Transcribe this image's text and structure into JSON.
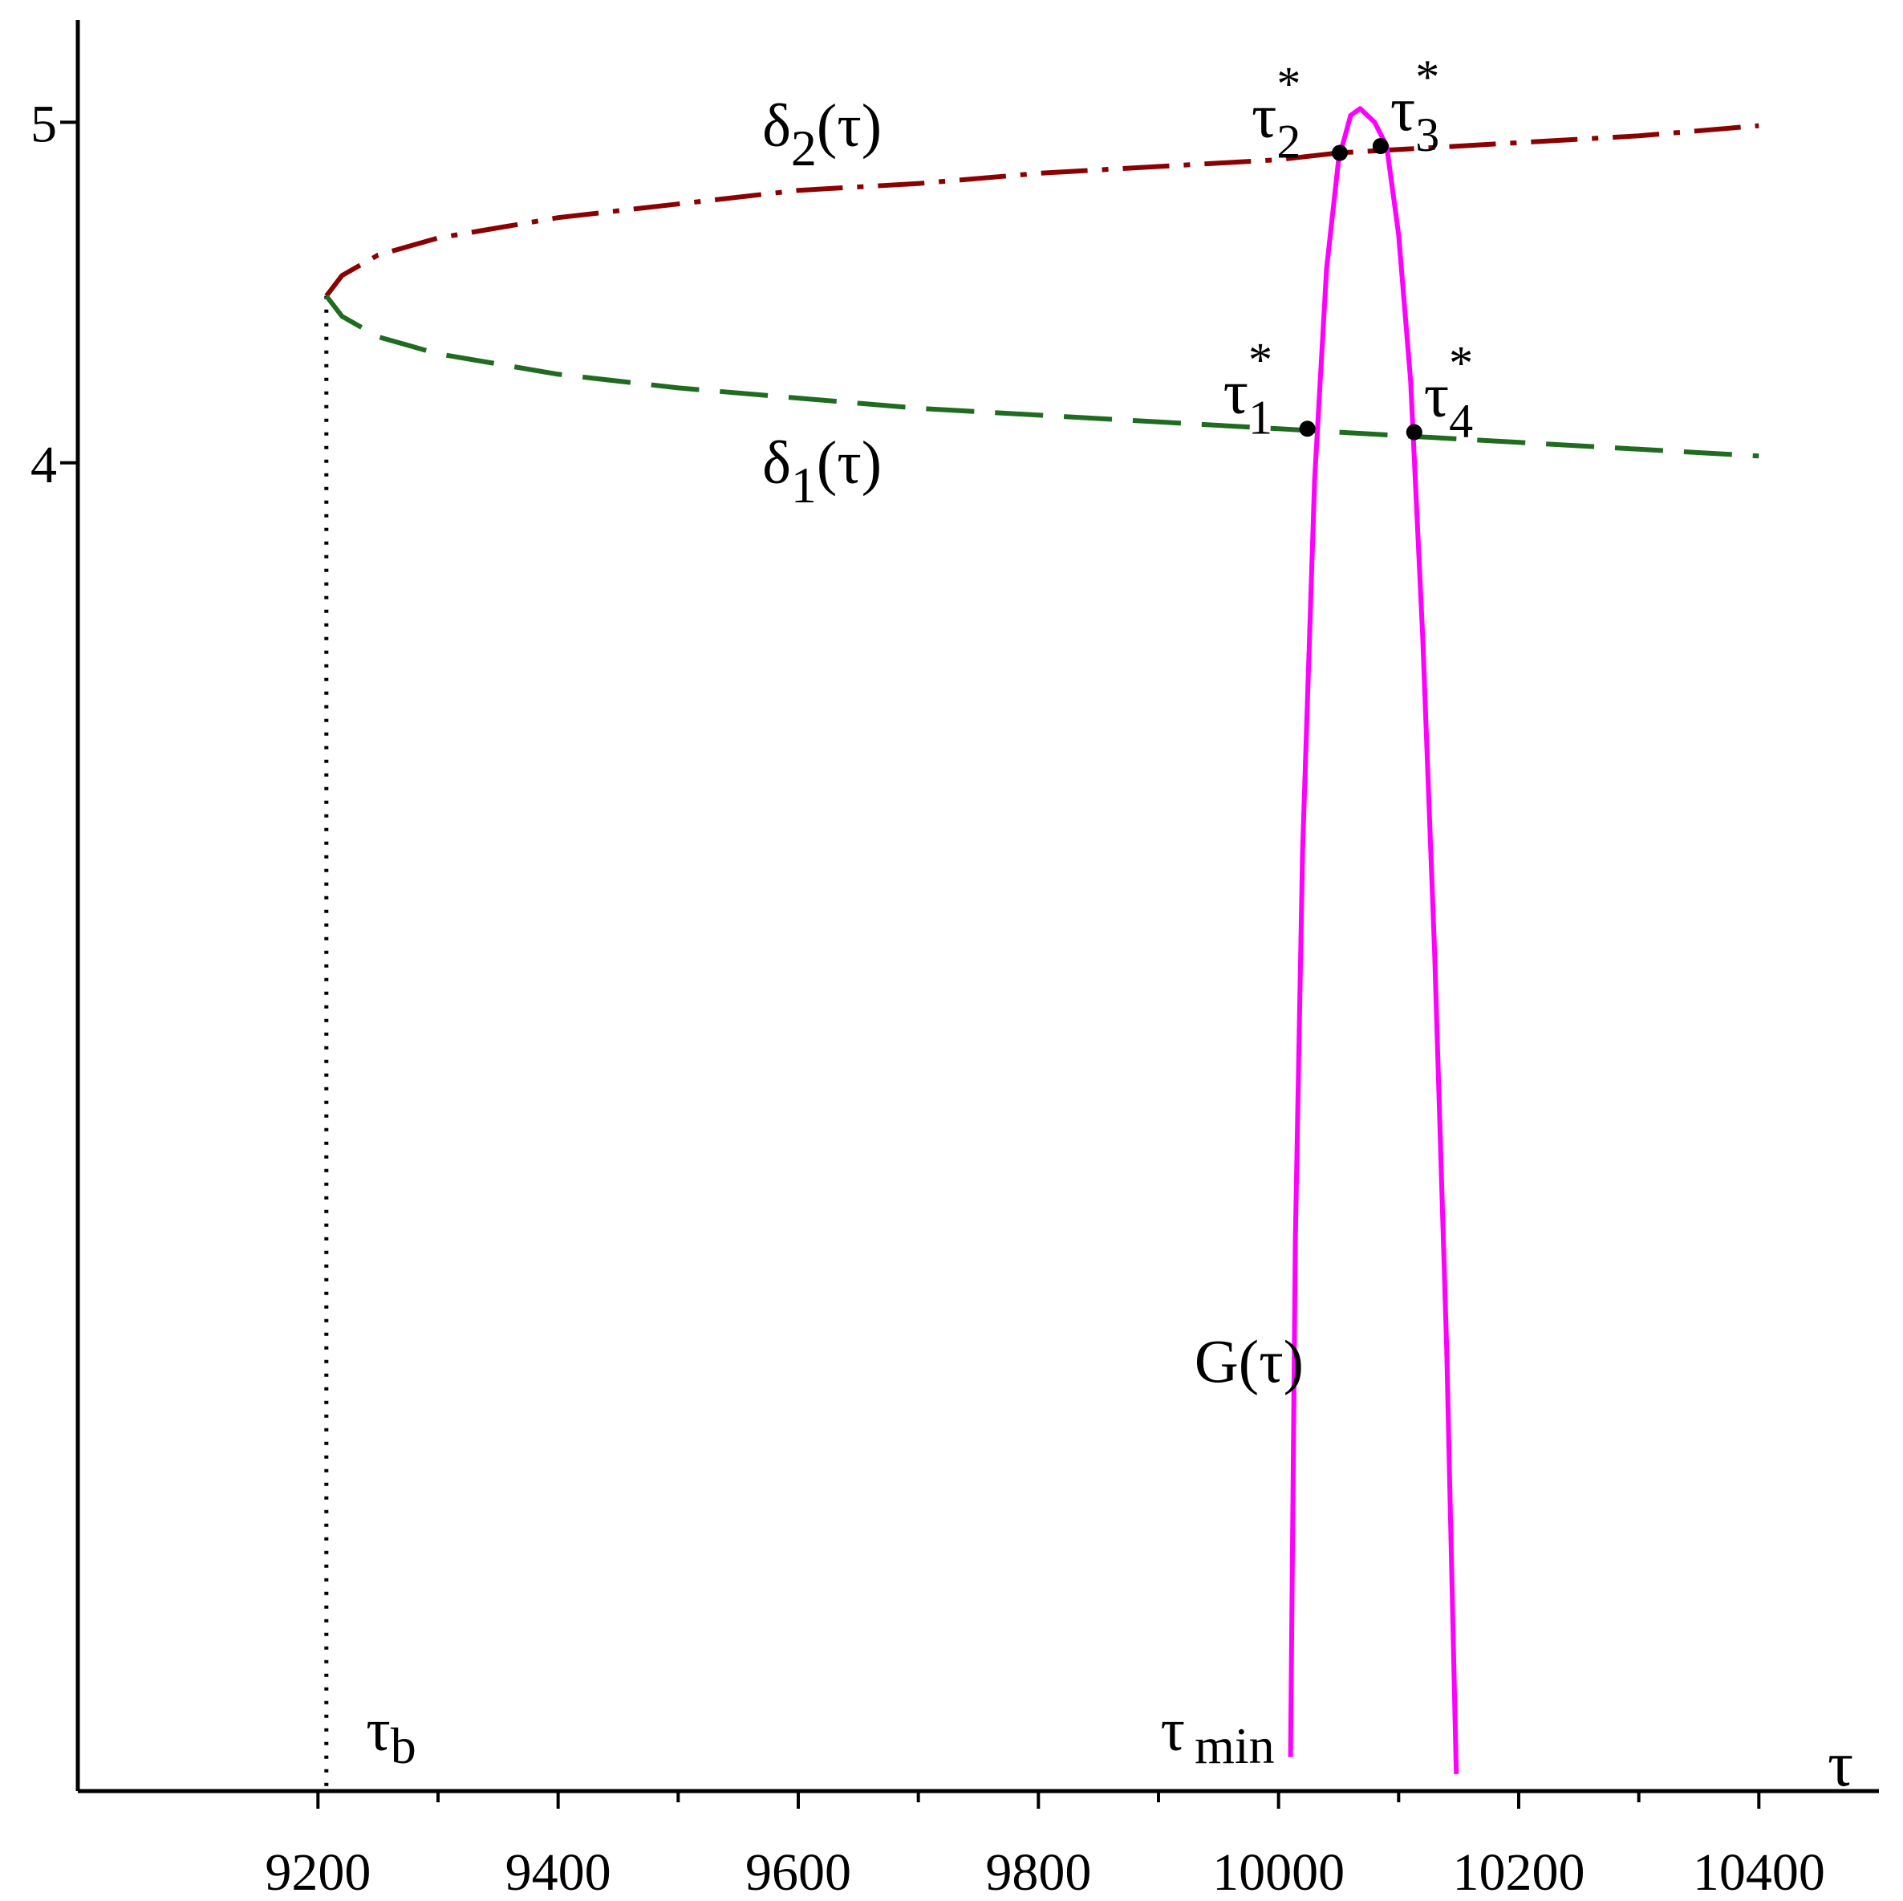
{
  "chart_data": {
    "type": "line",
    "title": "",
    "xlabel": "τ",
    "ylabel": "",
    "xlim": [
      9000,
      10500
    ],
    "ylim": [
      0.1,
      5.3
    ],
    "grid": false,
    "x_ticks": [
      9200,
      9400,
      9600,
      9800,
      10000,
      10200,
      10400
    ],
    "x_tick_labels": [
      "9200",
      "9400",
      "9600",
      "9800",
      "10000",
      "10200",
      "10400"
    ],
    "y_ticks": [
      4,
      5
    ],
    "y_tick_labels": [
      "4",
      "5"
    ],
    "series": [
      {
        "name": "δ2(τ)",
        "style": "dash-dot",
        "color": "#8b0000",
        "x": [
          9207,
          9220,
          9250,
          9300,
          9400,
          9500,
          9600,
          9700,
          9800,
          9900,
          10000,
          10050,
          10100,
          10200,
          10300,
          10400
        ],
        "y": [
          4.49,
          4.55,
          4.61,
          4.66,
          4.72,
          4.76,
          4.8,
          4.82,
          4.85,
          4.87,
          4.89,
          4.91,
          4.92,
          4.94,
          4.96,
          4.99
        ]
      },
      {
        "name": "δ1(τ)",
        "style": "dashed",
        "color": "#1f6b1f",
        "x": [
          9207,
          9220,
          9250,
          9300,
          9400,
          9500,
          9600,
          9700,
          9800,
          9900,
          10000,
          10100,
          10200,
          10300,
          10400
        ],
        "y": [
          4.49,
          4.43,
          4.37,
          4.32,
          4.26,
          4.22,
          4.19,
          4.16,
          4.14,
          4.12,
          4.1,
          4.08,
          4.06,
          4.04,
          4.02
        ]
      },
      {
        "name": "G(τ)",
        "style": "solid",
        "color": "#ff00ff",
        "x": [
          10010,
          10014,
          10020,
          10030,
          10040,
          10050,
          10060,
          10068,
          10080,
          10090,
          10100,
          10110,
          10120,
          10130,
          10140,
          10148
        ],
        "y": [
          0.2,
          1.72,
          2.86,
          3.95,
          4.57,
          4.89,
          5.02,
          5.04,
          5.0,
          4.93,
          4.67,
          4.24,
          3.49,
          2.56,
          1.4,
          0.15
        ]
      }
    ],
    "vertical_line": {
      "x": 9207,
      "label": "τb",
      "style": "dotted"
    },
    "intersections": [
      {
        "label": "τ1*",
        "x": 10024,
        "y": 4.1
      },
      {
        "label": "τ2*",
        "x": 10051,
        "y": 4.91
      },
      {
        "label": "τ3*",
        "x": 10085,
        "y": 4.93
      },
      {
        "label": "τ4*",
        "x": 10113,
        "y": 4.09
      }
    ],
    "annotations": [
      {
        "text": "δ2(τ)",
        "base": "δ",
        "sub": "2",
        "rest": "(τ)",
        "x": 9570,
        "y": 4.93
      },
      {
        "text": "δ1(τ)",
        "base": "δ",
        "sub": "1",
        "rest": "(τ)",
        "x": 9570,
        "y": 3.94
      },
      {
        "text": "G(τ)",
        "x": 9930,
        "y": 1.3
      },
      {
        "text": "τ min",
        "x": 9930,
        "y": 0.22
      },
      {
        "text": "τb",
        "x": 9240,
        "y": 0.22
      }
    ]
  }
}
